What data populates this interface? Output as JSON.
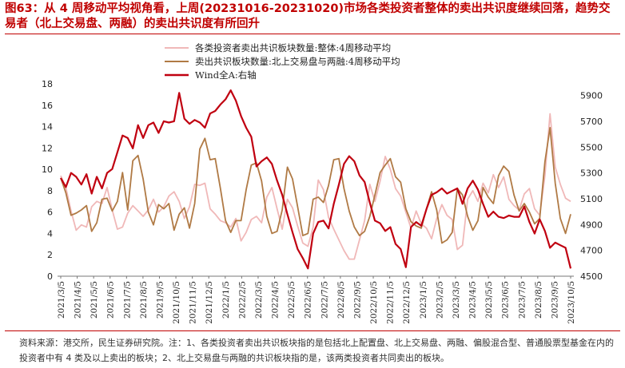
{
  "title": "图63：从 4 周移动平均视角看，上周(20231016-20231020)市场各类投资者整体的卖出共识度继续回落，趋势交易者（北上交易盘、两融）的卖出共识度有所回升",
  "source": "资料来源：港交所，民生证券研究院。注：1、各类投资者卖出共识板块指的是包括北上配置盘、北上交易盘、两融、偏股混合型、普通股票型基金在内的投资者中有 4 类及以上卖出的板块；2、北上交易盘与两融的共识板块指的是，该两类投资者共同卖出的板块。",
  "colors": {
    "accent": "#c00000",
    "series_all": "#f0b8b8",
    "series_trend": "#b07a45",
    "series_wind": "#c00010"
  },
  "chart_data": {
    "type": "line",
    "title": "",
    "x_tick_labels": [
      "2021/3/5",
      "2021/4/5",
      "2021/5/5",
      "2021/6/5",
      "2021/7/5",
      "2021/8/5",
      "2021/9/5",
      "2021/10/5",
      "2021/11/5",
      "2021/12/5",
      "2022/1/5",
      "2022/2/5",
      "2022/3/5",
      "2022/4/5",
      "2022/5/5",
      "2022/6/5",
      "2022/7/5",
      "2022/8/5",
      "2022/9/5",
      "2022/10/5",
      "2022/11/5",
      "2022/12/5",
      "2023/1/5",
      "2023/2/5",
      "2023/3/5",
      "2023/4/5",
      "2023/5/5",
      "2023/6/5",
      "2023/7/5",
      "2023/8/5",
      "2023/9/5",
      "2023/10/5"
    ],
    "left_axis": {
      "ylim": [
        0,
        18
      ],
      "ticks": [
        0,
        2,
        4,
        6,
        8,
        10,
        12,
        14,
        16,
        18
      ]
    },
    "right_axis": {
      "ylim": [
        4500,
        5990
      ],
      "ticks": [
        4500,
        4700,
        4900,
        5100,
        5300,
        5500,
        5700,
        5900
      ]
    },
    "legend_position": "top-left",
    "series": [
      {
        "name": "各类投资者卖出共识板块数量:整体:4周移动平均",
        "axis": "left",
        "color": "#f0b8b8",
        "points": [
          [
            0,
            9.4
          ],
          [
            1,
            8.3
          ],
          [
            2,
            6.1
          ],
          [
            3,
            4.3
          ],
          [
            4,
            4.8
          ],
          [
            5,
            4.6
          ],
          [
            6,
            6.5
          ],
          [
            7,
            7.0
          ],
          [
            8,
            6.8
          ],
          [
            9,
            8.3
          ],
          [
            10,
            6.2
          ],
          [
            11,
            4.4
          ],
          [
            12,
            4.6
          ],
          [
            13,
            5.9
          ],
          [
            14,
            6.6
          ],
          [
            15,
            6.1
          ],
          [
            16,
            5.6
          ],
          [
            17,
            6.2
          ],
          [
            18,
            7.2
          ],
          [
            19,
            6.0
          ],
          [
            20,
            6.5
          ],
          [
            21,
            7.5
          ],
          [
            22,
            7.9
          ],
          [
            23,
            7.0
          ],
          [
            24,
            5.4
          ],
          [
            25,
            6.5
          ],
          [
            26,
            8.6
          ],
          [
            27,
            8.5
          ],
          [
            28,
            8.7
          ],
          [
            29,
            6.3
          ],
          [
            30,
            5.8
          ],
          [
            31,
            5.2
          ],
          [
            32,
            5.0
          ],
          [
            33,
            4.6
          ],
          [
            34,
            5.4
          ],
          [
            35,
            3.3
          ],
          [
            36,
            4.1
          ],
          [
            37,
            5.3
          ],
          [
            38,
            5.6
          ],
          [
            39,
            5.0
          ],
          [
            40,
            7.4
          ],
          [
            41,
            8.3
          ],
          [
            42,
            6.3
          ],
          [
            43,
            4.4
          ],
          [
            44,
            7.2
          ],
          [
            45,
            6.4
          ],
          [
            46,
            4.7
          ],
          [
            47,
            3.1
          ],
          [
            48,
            2.8
          ],
          [
            49,
            4.6
          ],
          [
            50,
            9.0
          ],
          [
            51,
            8.1
          ],
          [
            52,
            5.5
          ],
          [
            53,
            4.4
          ],
          [
            54,
            3.4
          ],
          [
            55,
            2.4
          ],
          [
            56,
            1.6
          ],
          [
            57,
            1.6
          ],
          [
            58,
            3.4
          ],
          [
            59,
            5.2
          ],
          [
            60,
            8.6
          ],
          [
            61,
            7.0
          ],
          [
            62,
            8.9
          ],
          [
            63,
            11.2
          ],
          [
            64,
            10.0
          ],
          [
            65,
            8.2
          ],
          [
            66,
            7.5
          ],
          [
            67,
            6.0
          ],
          [
            68,
            4.5
          ],
          [
            69,
            6.1
          ],
          [
            70,
            4.9
          ],
          [
            71,
            4.5
          ],
          [
            72,
            3.5
          ],
          [
            73,
            5.4
          ],
          [
            74,
            6.7
          ],
          [
            75,
            5.7
          ],
          [
            76,
            5.3
          ],
          [
            77,
            2.5
          ],
          [
            78,
            2.9
          ],
          [
            79,
            7.2
          ],
          [
            80,
            8.0
          ],
          [
            81,
            7.0
          ],
          [
            82,
            8.7
          ],
          [
            83,
            7.8
          ],
          [
            84,
            9.5
          ],
          [
            85,
            8.3
          ],
          [
            86,
            9.3
          ],
          [
            87,
            7.2
          ],
          [
            88,
            6.6
          ],
          [
            89,
            6.2
          ],
          [
            90,
            7.7
          ],
          [
            91,
            8.2
          ],
          [
            92,
            6.3
          ],
          [
            93,
            5.7
          ],
          [
            94,
            9.4
          ],
          [
            95,
            15.2
          ],
          [
            96,
            10.2
          ],
          [
            97,
            8.6
          ],
          [
            98,
            7.3
          ],
          [
            99,
            7.0
          ]
        ]
      },
      {
        "name": "卖出共识板块数量:北上交易盘与两融:4周移动平均",
        "axis": "left",
        "color": "#b07a45",
        "points": [
          [
            0,
            9.2
          ],
          [
            1,
            7.8
          ],
          [
            2,
            5.7
          ],
          [
            3,
            5.9
          ],
          [
            4,
            6.2
          ],
          [
            5,
            6.6
          ],
          [
            6,
            4.2
          ],
          [
            7,
            5.0
          ],
          [
            8,
            7.2
          ],
          [
            9,
            7.3
          ],
          [
            10,
            6.1
          ],
          [
            11,
            7.0
          ],
          [
            12,
            9.7
          ],
          [
            13,
            6.2
          ],
          [
            14,
            10.8
          ],
          [
            15,
            11.3
          ],
          [
            16,
            9.1
          ],
          [
            17,
            6.0
          ],
          [
            18,
            4.8
          ],
          [
            19,
            6.7
          ],
          [
            20,
            6.3
          ],
          [
            21,
            6.8
          ],
          [
            22,
            4.3
          ],
          [
            23,
            5.8
          ],
          [
            24,
            6.4
          ],
          [
            25,
            4.5
          ],
          [
            26,
            6.8
          ],
          [
            27,
            11.9
          ],
          [
            28,
            12.9
          ],
          [
            29,
            10.9
          ],
          [
            30,
            11.0
          ],
          [
            31,
            8.2
          ],
          [
            32,
            5.2
          ],
          [
            33,
            4.1
          ],
          [
            34,
            5.2
          ],
          [
            35,
            5.2
          ],
          [
            36,
            8.1
          ],
          [
            37,
            10.4
          ],
          [
            38,
            10.6
          ],
          [
            39,
            8.9
          ],
          [
            40,
            5.6
          ],
          [
            41,
            4.0
          ],
          [
            42,
            4.2
          ],
          [
            43,
            6.2
          ],
          [
            44,
            10.2
          ],
          [
            45,
            9.1
          ],
          [
            46,
            6.5
          ],
          [
            47,
            3.8
          ],
          [
            48,
            4.0
          ],
          [
            49,
            7.2
          ],
          [
            50,
            7.4
          ],
          [
            51,
            6.9
          ],
          [
            52,
            8.5
          ],
          [
            53,
            10.9
          ],
          [
            54,
            11.0
          ],
          [
            55,
            8.2
          ],
          [
            56,
            6.1
          ],
          [
            57,
            4.6
          ],
          [
            58,
            3.8
          ],
          [
            59,
            4.2
          ],
          [
            60,
            5.6
          ],
          [
            61,
            7.6
          ],
          [
            62,
            9.7
          ],
          [
            63,
            10.4
          ],
          [
            64,
            11.0
          ],
          [
            65,
            9.3
          ],
          [
            66,
            8.8
          ],
          [
            67,
            6.3
          ],
          [
            68,
            5.1
          ],
          [
            69,
            4.7
          ],
          [
            70,
            4.5
          ],
          [
            71,
            6.3
          ],
          [
            72,
            7.9
          ],
          [
            73,
            6.2
          ],
          [
            74,
            3.1
          ],
          [
            75,
            3.4
          ],
          [
            76,
            4.1
          ],
          [
            77,
            8.2
          ],
          [
            78,
            7.6
          ],
          [
            79,
            5.6
          ],
          [
            80,
            4.3
          ],
          [
            81,
            5.2
          ],
          [
            82,
            8.3
          ],
          [
            83,
            7.4
          ],
          [
            84,
            6.8
          ],
          [
            85,
            9.4
          ],
          [
            86,
            10.3
          ],
          [
            87,
            9.8
          ],
          [
            88,
            7.6
          ],
          [
            89,
            6.1
          ],
          [
            90,
            6.8
          ],
          [
            91,
            6.0
          ],
          [
            92,
            4.9
          ],
          [
            93,
            5.4
          ],
          [
            94,
            10.7
          ],
          [
            95,
            13.9
          ],
          [
            96,
            8.7
          ],
          [
            97,
            5.4
          ],
          [
            98,
            4.0
          ],
          [
            99,
            5.8
          ]
        ]
      },
      {
        "name": "Wind全A:右轴",
        "axis": "right",
        "color": "#c00010",
        "points": [
          [
            0,
            5260
          ],
          [
            1,
            5190
          ],
          [
            2,
            5300
          ],
          [
            3,
            5270
          ],
          [
            4,
            5210
          ],
          [
            5,
            5290
          ],
          [
            6,
            5140
          ],
          [
            7,
            5270
          ],
          [
            8,
            5180
          ],
          [
            9,
            5300
          ],
          [
            10,
            5330
          ],
          [
            11,
            5460
          ],
          [
            12,
            5590
          ],
          [
            13,
            5570
          ],
          [
            14,
            5490
          ],
          [
            15,
            5670
          ],
          [
            16,
            5570
          ],
          [
            17,
            5670
          ],
          [
            18,
            5690
          ],
          [
            19,
            5610
          ],
          [
            20,
            5700
          ],
          [
            21,
            5690
          ],
          [
            22,
            5700
          ],
          [
            23,
            5920
          ],
          [
            24,
            5720
          ],
          [
            25,
            5680
          ],
          [
            26,
            5710
          ],
          [
            27,
            5690
          ],
          [
            28,
            5650
          ],
          [
            29,
            5760
          ],
          [
            30,
            5780
          ],
          [
            31,
            5830
          ],
          [
            32,
            5870
          ],
          [
            33,
            5940
          ],
          [
            34,
            5860
          ],
          [
            35,
            5740
          ],
          [
            36,
            5650
          ],
          [
            37,
            5580
          ],
          [
            38,
            5350
          ],
          [
            39,
            5390
          ],
          [
            40,
            5420
          ],
          [
            41,
            5370
          ],
          [
            42,
            5240
          ],
          [
            43,
            5130
          ],
          [
            44,
            4980
          ],
          [
            45,
            4840
          ],
          [
            46,
            4710
          ],
          [
            47,
            4640
          ],
          [
            48,
            4560
          ],
          [
            49,
            4830
          ],
          [
            50,
            4920
          ],
          [
            51,
            4930
          ],
          [
            52,
            4870
          ],
          [
            53,
            5060
          ],
          [
            54,
            5210
          ],
          [
            55,
            5370
          ],
          [
            56,
            5430
          ],
          [
            57,
            5390
          ],
          [
            58,
            5280
          ],
          [
            59,
            5230
          ],
          [
            60,
            5070
          ],
          [
            61,
            4930
          ],
          [
            62,
            4910
          ],
          [
            63,
            4850
          ],
          [
            64,
            4880
          ],
          [
            65,
            4750
          ],
          [
            66,
            4710
          ],
          [
            67,
            4570
          ],
          [
            68,
            4880
          ],
          [
            69,
            4920
          ],
          [
            70,
            4890
          ],
          [
            71,
            5020
          ],
          [
            72,
            5130
          ],
          [
            73,
            5150
          ],
          [
            74,
            5180
          ],
          [
            75,
            5140
          ],
          [
            76,
            5160
          ],
          [
            77,
            5180
          ],
          [
            78,
            5060
          ],
          [
            79,
            5180
          ],
          [
            80,
            5240
          ],
          [
            81,
            5170
          ],
          [
            82,
            5060
          ],
          [
            83,
            4960
          ],
          [
            84,
            5000
          ],
          [
            85,
            4960
          ],
          [
            86,
            4950
          ],
          [
            87,
            4970
          ],
          [
            88,
            4960
          ],
          [
            89,
            4960
          ],
          [
            90,
            5040
          ],
          [
            91,
            4920
          ],
          [
            92,
            4830
          ],
          [
            93,
            4940
          ],
          [
            94,
            4850
          ],
          [
            95,
            4720
          ],
          [
            96,
            4760
          ],
          [
            97,
            4740
          ],
          [
            98,
            4720
          ],
          [
            99,
            4560
          ]
        ]
      }
    ]
  }
}
